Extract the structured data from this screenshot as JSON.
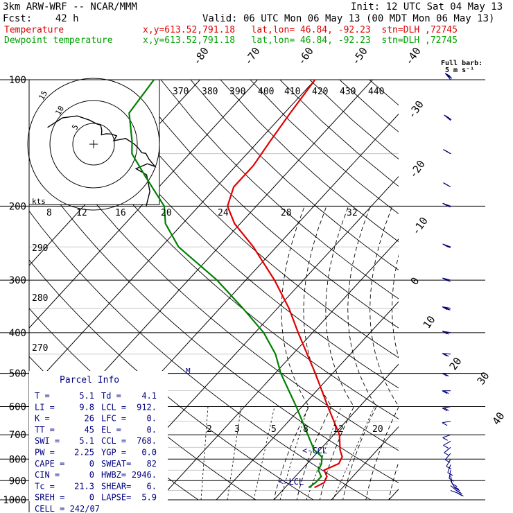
{
  "header": {
    "model": "3km ARW-WRF -- NCAR/MMM",
    "init": "Init: 12 UTC Sat 04 May 13",
    "fcst": "Fcst:    42 h",
    "valid": "Valid: 06 UTC Mon 06 May 13 (00 MDT Mon 06 May 13)",
    "temp_label": "Temperature",
    "temp_loc": "x,y=613.52,791.18   lat,lon= 46.84, -92.23  stn=DLH ,72745",
    "dew_label": "Dewpoint temperature",
    "dew_loc": "x,y=613.52,791.18   lat,lon= 46.84, -92.23  stn=DLH ,72745"
  },
  "barb_legend": {
    "line1": "Full barb:",
    "line2": "5 m s⁻¹"
  },
  "colors": {
    "temperature": "#e00000",
    "dewpoint": "#008000",
    "barbs": "#000080",
    "info": "#000080"
  },
  "hodo_labels": {
    "r5": "5",
    "r10": "10",
    "r15": "15",
    "kts": "kts"
  },
  "parcel_info": {
    "title": "Parcel Info",
    "rows": [
      {
        "l1": "T  =",
        "v1": "5.1",
        "l2": "Td =",
        "v2": "4.1"
      },
      {
        "l1": "LI =",
        "v1": "9.8",
        "l2": "LCL =",
        "v2": "912."
      },
      {
        "l1": "K  =",
        "v1": "26",
        "l2": "LFC =",
        "v2": "0."
      },
      {
        "l1": "TT =",
        "v1": "45",
        "l2": "EL  =",
        "v2": "0."
      },
      {
        "l1": "SWI =",
        "v1": "5.1",
        "l2": "CCL =",
        "v2": "768."
      },
      {
        "l1": "PW =",
        "v1": "2.25",
        "l2": "YGP =",
        "v2": "0.0"
      },
      {
        "l1": "CAPE =",
        "v1": "0",
        "l2": "SWEAT=",
        "v2": "82"
      },
      {
        "l1": "CIN =",
        "v1": "0",
        "l2": "HWBZ=",
        "v2": "2946."
      },
      {
        "l1": "Tc =",
        "v1": "21.3",
        "l2": "SHEAR=",
        "v2": "6."
      },
      {
        "l1": "SREH =",
        "v1": "0",
        "l2": "LAPSE=",
        "v2": "5.9"
      }
    ],
    "cell": "CELL = 242/07"
  },
  "chart_data": {
    "type": "line",
    "diagram": "skew-T log-p",
    "pressure_levels": [
      100,
      200,
      300,
      400,
      500,
      600,
      700,
      800,
      900,
      1000
    ],
    "pressure_tick_labels": [
      "100",
      "200",
      "300",
      "400",
      "500",
      "600",
      "700",
      "800",
      "900",
      "1000"
    ],
    "isotherm_labels": [
      "-80",
      "-70",
      "-60",
      "-50",
      "-40",
      "-30",
      "-20",
      "-10",
      "0",
      "10",
      "20",
      "30",
      "40"
    ],
    "theta_labels": [
      "370",
      "380",
      "390",
      "400",
      "410",
      "420",
      "430",
      "440",
      "290",
      "280",
      "270"
    ],
    "mixing_ratio_labels": [
      "8",
      "12",
      "16",
      "20",
      "24",
      "28",
      "32",
      "2",
      "3",
      "5",
      "8",
      "12",
      "20"
    ],
    "annotations": {
      "ccl": "<-CCL",
      "lcl": "<-LCL",
      "marker": "M"
    },
    "series": [
      {
        "name": "Temperature",
        "p": [
          935,
          910,
          880,
          850,
          820,
          790,
          760,
          700,
          600,
          500,
          450,
          400,
          350,
          300,
          250,
          220,
          200,
          180,
          160,
          140,
          120,
          100
        ],
        "t": [
          5.1,
          6,
          5.5,
          4,
          5.5,
          5,
          3.5,
          1,
          -5.5,
          -13,
          -17.5,
          -22.5,
          -28,
          -35,
          -44,
          -51,
          -55,
          -57,
          -57,
          -58,
          -59,
          -60
        ]
      },
      {
        "name": "Dewpoint temperature",
        "p": [
          935,
          910,
          880,
          850,
          820,
          790,
          760,
          700,
          600,
          500,
          450,
          400,
          350,
          300,
          250,
          220,
          200,
          170,
          150,
          140,
          120,
          100
        ],
        "t": [
          4.1,
          4.5,
          4.5,
          3,
          2.5,
          1.5,
          -1,
          -4.5,
          -11,
          -19,
          -23,
          -28.5,
          -36,
          -45,
          -57,
          -63,
          -66,
          -74,
          -80,
          -82,
          -87,
          -88
        ]
      }
    ],
    "wind_barbs": {
      "p": [
        950,
        925,
        900,
        875,
        850,
        825,
        800,
        775,
        750,
        725,
        700,
        650,
        600,
        550,
        500,
        450,
        400,
        350,
        300,
        250,
        200,
        180,
        150,
        125,
        100
      ],
      "spd": [
        12,
        10,
        8,
        6,
        5,
        5,
        4,
        3,
        4,
        5,
        6,
        5,
        8,
        10,
        10,
        11,
        12,
        13,
        14,
        16,
        14,
        12,
        15,
        18,
        20
      ],
      "dir": [
        110,
        130,
        150,
        170,
        190,
        200,
        210,
        220,
        230,
        240,
        250,
        260,
        260,
        270,
        270,
        275,
        280,
        280,
        285,
        290,
        290,
        300,
        300,
        310,
        320
      ]
    }
  }
}
